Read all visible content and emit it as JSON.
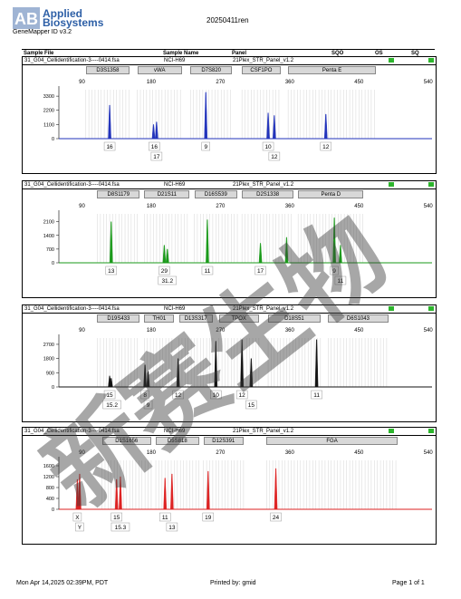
{
  "header": {
    "logo_line1": "Applied",
    "logo_line2": "Biosystems",
    "software": "GeneMapper ID v3.2",
    "title": "20250411ren"
  },
  "columns": [
    "Sample File",
    "Sample Name",
    "Panel",
    "SQO",
    "OS",
    "SQ"
  ],
  "axis_ticks": [
    90,
    180,
    270,
    360,
    450,
    540
  ],
  "panels": [
    {
      "sample_file": "31_G04_Cellidentification-3----0414.fsa",
      "sample_name": "NCI-H69",
      "panel": "21Plex_STR_Panel_v1.2",
      "color": "#2233bb",
      "loci": [
        {
          "name": "D3S1358",
          "start": 95,
          "end": 152
        },
        {
          "name": "vWA",
          "start": 162,
          "end": 220
        },
        {
          "name": "D7S820",
          "start": 231,
          "end": 285
        },
        {
          "name": "CSF1PO",
          "start": 298,
          "end": 348
        },
        {
          "name": "Penta E",
          "start": 358,
          "end": 472
        }
      ],
      "y_ticks": [
        0,
        1100,
        2200,
        3300
      ],
      "y_max": 3800,
      "peaks": [
        {
          "x": 126,
          "h": 2600
        },
        {
          "x": 183,
          "h": 1100
        },
        {
          "x": 187,
          "h": 1300
        },
        {
          "x": 251,
          "h": 3600
        },
        {
          "x": 332,
          "h": 2000
        },
        {
          "x": 340,
          "h": 1800
        },
        {
          "x": 407,
          "h": 1900
        }
      ],
      "alleles": [
        {
          "x": 126,
          "label": "16",
          "row": 1
        },
        {
          "x": 184,
          "label": "16",
          "row": 1
        },
        {
          "x": 187,
          "label": "17",
          "row": 2
        },
        {
          "x": 251,
          "label": "9",
          "row": 1
        },
        {
          "x": 332,
          "label": "10",
          "row": 1
        },
        {
          "x": 340,
          "label": "12",
          "row": 2
        },
        {
          "x": 407,
          "label": "12",
          "row": 1
        }
      ]
    },
    {
      "sample_file": "31_G04_Cellidentification-3----0414.fsa",
      "sample_name": "NCI-H69",
      "panel": "21Plex_STR_Panel_v1.2",
      "color": "#1a9a1a",
      "loci": [
        {
          "name": "D8S1179",
          "start": 110,
          "end": 165
        },
        {
          "name": "D21S11",
          "start": 171,
          "end": 230
        },
        {
          "name": "D16S539",
          "start": 236,
          "end": 292
        },
        {
          "name": "D2S1338",
          "start": 298,
          "end": 365
        },
        {
          "name": "Penta D",
          "start": 371,
          "end": 456
        }
      ],
      "y_ticks": [
        0,
        700,
        1400,
        2100
      ],
      "y_max": 2500,
      "peaks": [
        {
          "x": 128,
          "h": 2100
        },
        {
          "x": 197,
          "h": 900
        },
        {
          "x": 201,
          "h": 700
        },
        {
          "x": 253,
          "h": 2200
        },
        {
          "x": 322,
          "h": 1000
        },
        {
          "x": 356,
          "h": 1300
        },
        {
          "x": 418,
          "h": 2300
        },
        {
          "x": 426,
          "h": 900
        }
      ],
      "alleles": [
        {
          "x": 128,
          "label": "13",
          "row": 1
        },
        {
          "x": 197,
          "label": "29",
          "row": 1
        },
        {
          "x": 201,
          "label": "31.2",
          "row": 2
        },
        {
          "x": 253,
          "label": "11",
          "row": 1
        },
        {
          "x": 322,
          "label": "17",
          "row": 1
        },
        {
          "x": 418,
          "label": "9",
          "row": 1
        },
        {
          "x": 426,
          "label": "11",
          "row": 2
        }
      ]
    },
    {
      "sample_file": "31_G04_Cellidentification-3----0414.fsa",
      "sample_name": "NCI-H69",
      "panel": "21Plex_STR_Panel_v1.2",
      "color": "#111111",
      "loci": [
        {
          "name": "D19S433",
          "start": 110,
          "end": 165
        },
        {
          "name": "TH01",
          "start": 171,
          "end": 210
        },
        {
          "name": "D13S317",
          "start": 216,
          "end": 260
        },
        {
          "name": "TPOX",
          "start": 268,
          "end": 320
        },
        {
          "name": "D18S51",
          "start": 332,
          "end": 400
        },
        {
          "name": "D6S1043",
          "start": 410,
          "end": 488
        }
      ],
      "y_ticks": [
        0,
        900,
        1800,
        2700
      ],
      "y_max": 3100,
      "peaks": [
        {
          "x": 126,
          "h": 700
        },
        {
          "x": 128,
          "h": 550
        },
        {
          "x": 172,
          "h": 1400
        },
        {
          "x": 176,
          "h": 1000
        },
        {
          "x": 215,
          "h": 1800
        },
        {
          "x": 264,
          "h": 2900
        },
        {
          "x": 298,
          "h": 3000
        },
        {
          "x": 310,
          "h": 1800
        },
        {
          "x": 395,
          "h": 3000
        }
      ],
      "alleles": [
        {
          "x": 126,
          "label": "15",
          "row": 1
        },
        {
          "x": 129,
          "label": "15.2",
          "row": 2
        },
        {
          "x": 172,
          "label": "8",
          "row": 1
        },
        {
          "x": 176,
          "label": "9",
          "row": 2
        },
        {
          "x": 215,
          "label": "12",
          "row": 1
        },
        {
          "x": 264,
          "label": "10",
          "row": 1
        },
        {
          "x": 298,
          "label": "12",
          "row": 1
        },
        {
          "x": 310,
          "label": "15",
          "row": 2
        },
        {
          "x": 395,
          "label": "11",
          "row": 1
        }
      ]
    },
    {
      "sample_file": "31_G04_Cellidentification-3----0414.fsa",
      "sample_name": "NCI-H69",
      "panel": "21Plex_STR_Panel_v1.2",
      "color": "#dd2222",
      "loci": [
        {
          "name": "D1S1656",
          "start": 116,
          "end": 180
        },
        {
          "name": "D5S818",
          "start": 186,
          "end": 242
        },
        {
          "name": "D12S391",
          "start": 248,
          "end": 300
        },
        {
          "name": "FGA",
          "start": 330,
          "end": 500
        }
      ],
      "y_ticks": [
        0,
        400,
        800,
        1200,
        1600
      ],
      "y_max": 1800,
      "peaks": [
        {
          "x": 84,
          "h": 1100
        },
        {
          "x": 87,
          "h": 1300
        },
        {
          "x": 135,
          "h": 1100
        },
        {
          "x": 140,
          "h": 1200
        },
        {
          "x": 198,
          "h": 1150
        },
        {
          "x": 207,
          "h": 1300
        },
        {
          "x": 254,
          "h": 1400
        },
        {
          "x": 342,
          "h": 1500
        }
      ],
      "alleles": [
        {
          "x": 84,
          "label": "X",
          "row": 1
        },
        {
          "x": 87,
          "label": "Y",
          "row": 2
        },
        {
          "x": 135,
          "label": "15",
          "row": 1
        },
        {
          "x": 140,
          "label": "15.3",
          "row": 2
        },
        {
          "x": 198,
          "label": "11",
          "row": 1
        },
        {
          "x": 207,
          "label": "13",
          "row": 2
        },
        {
          "x": 254,
          "label": "19",
          "row": 1
        },
        {
          "x": 342,
          "label": "24",
          "row": 1
        }
      ]
    }
  ],
  "footer": {
    "date": "Mon Apr 14,2025 02:39PM, PDT",
    "printed_by": "Printed by: gmid",
    "page": "Page 1 of 1"
  }
}
